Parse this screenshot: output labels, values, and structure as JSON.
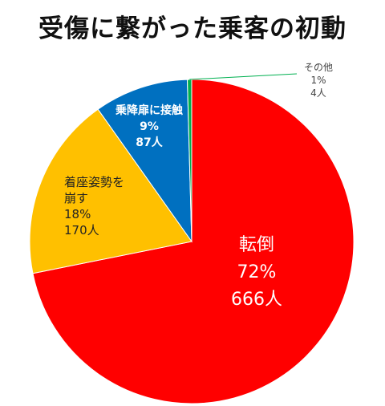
{
  "chart_data": {
    "type": "pie",
    "title": "受傷に繋がった乗客の初動",
    "slices": [
      {
        "name": "転倒",
        "percent_label": "72%",
        "count_label": "666人",
        "value": 666,
        "color": "#ff0000",
        "label_color": "#ffffff"
      },
      {
        "name": "着座姿勢を崩す",
        "percent_label": "18%",
        "count_label": "170人",
        "value": 170,
        "color": "#ffc000",
        "label_color": "#222222"
      },
      {
        "name": "乗降扉に接触",
        "percent_label": "9%",
        "count_label": "87人",
        "value": 87,
        "color": "#0070c0",
        "label_color": "#ffffff"
      },
      {
        "name": "その他",
        "percent_label": "1%",
        "count_label": "4人",
        "value": 4,
        "color": "#00b050",
        "label_color": "#444444"
      }
    ],
    "start_angle": "12 o'clock",
    "direction": "clockwise"
  }
}
